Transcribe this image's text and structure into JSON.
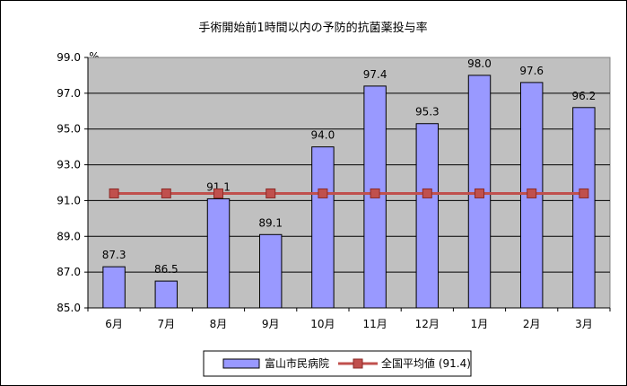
{
  "chart_data": {
    "type": "bar+line",
    "title": "手術開始前1時間以内の予防的抗菌薬投与率",
    "ylabel": "%",
    "xlabel": "",
    "ylim": [
      85.0,
      99.0
    ],
    "ytick_step": 2.0,
    "ytick_labels": [
      "85.0",
      "87.0",
      "89.0",
      "91.0",
      "93.0",
      "95.0",
      "97.0",
      "99.0"
    ],
    "categories": [
      "6月",
      "7月",
      "8月",
      "9月",
      "10月",
      "11月",
      "12月",
      "1月",
      "2月",
      "3月"
    ],
    "series": [
      {
        "name": "富山市民病院",
        "kind": "bar",
        "color": "#9999ff",
        "values": [
          87.3,
          86.5,
          91.1,
          89.1,
          94.0,
          97.4,
          95.3,
          98.0,
          97.6,
          96.2
        ],
        "data_labels": [
          "87.3",
          "86.5",
          "91.1",
          "89.1",
          "94.0",
          "97.4",
          "95.3",
          "98.0",
          "97.6",
          "96.2"
        ]
      },
      {
        "name": "全国平均値 (91.4)",
        "kind": "line",
        "color": "#c0504d",
        "values": [
          91.4,
          91.4,
          91.4,
          91.4,
          91.4,
          91.4,
          91.4,
          91.4,
          91.4,
          91.4
        ]
      }
    ],
    "grid": true,
    "plot_background": "#c0c0c0",
    "legend_position": "bottom"
  }
}
